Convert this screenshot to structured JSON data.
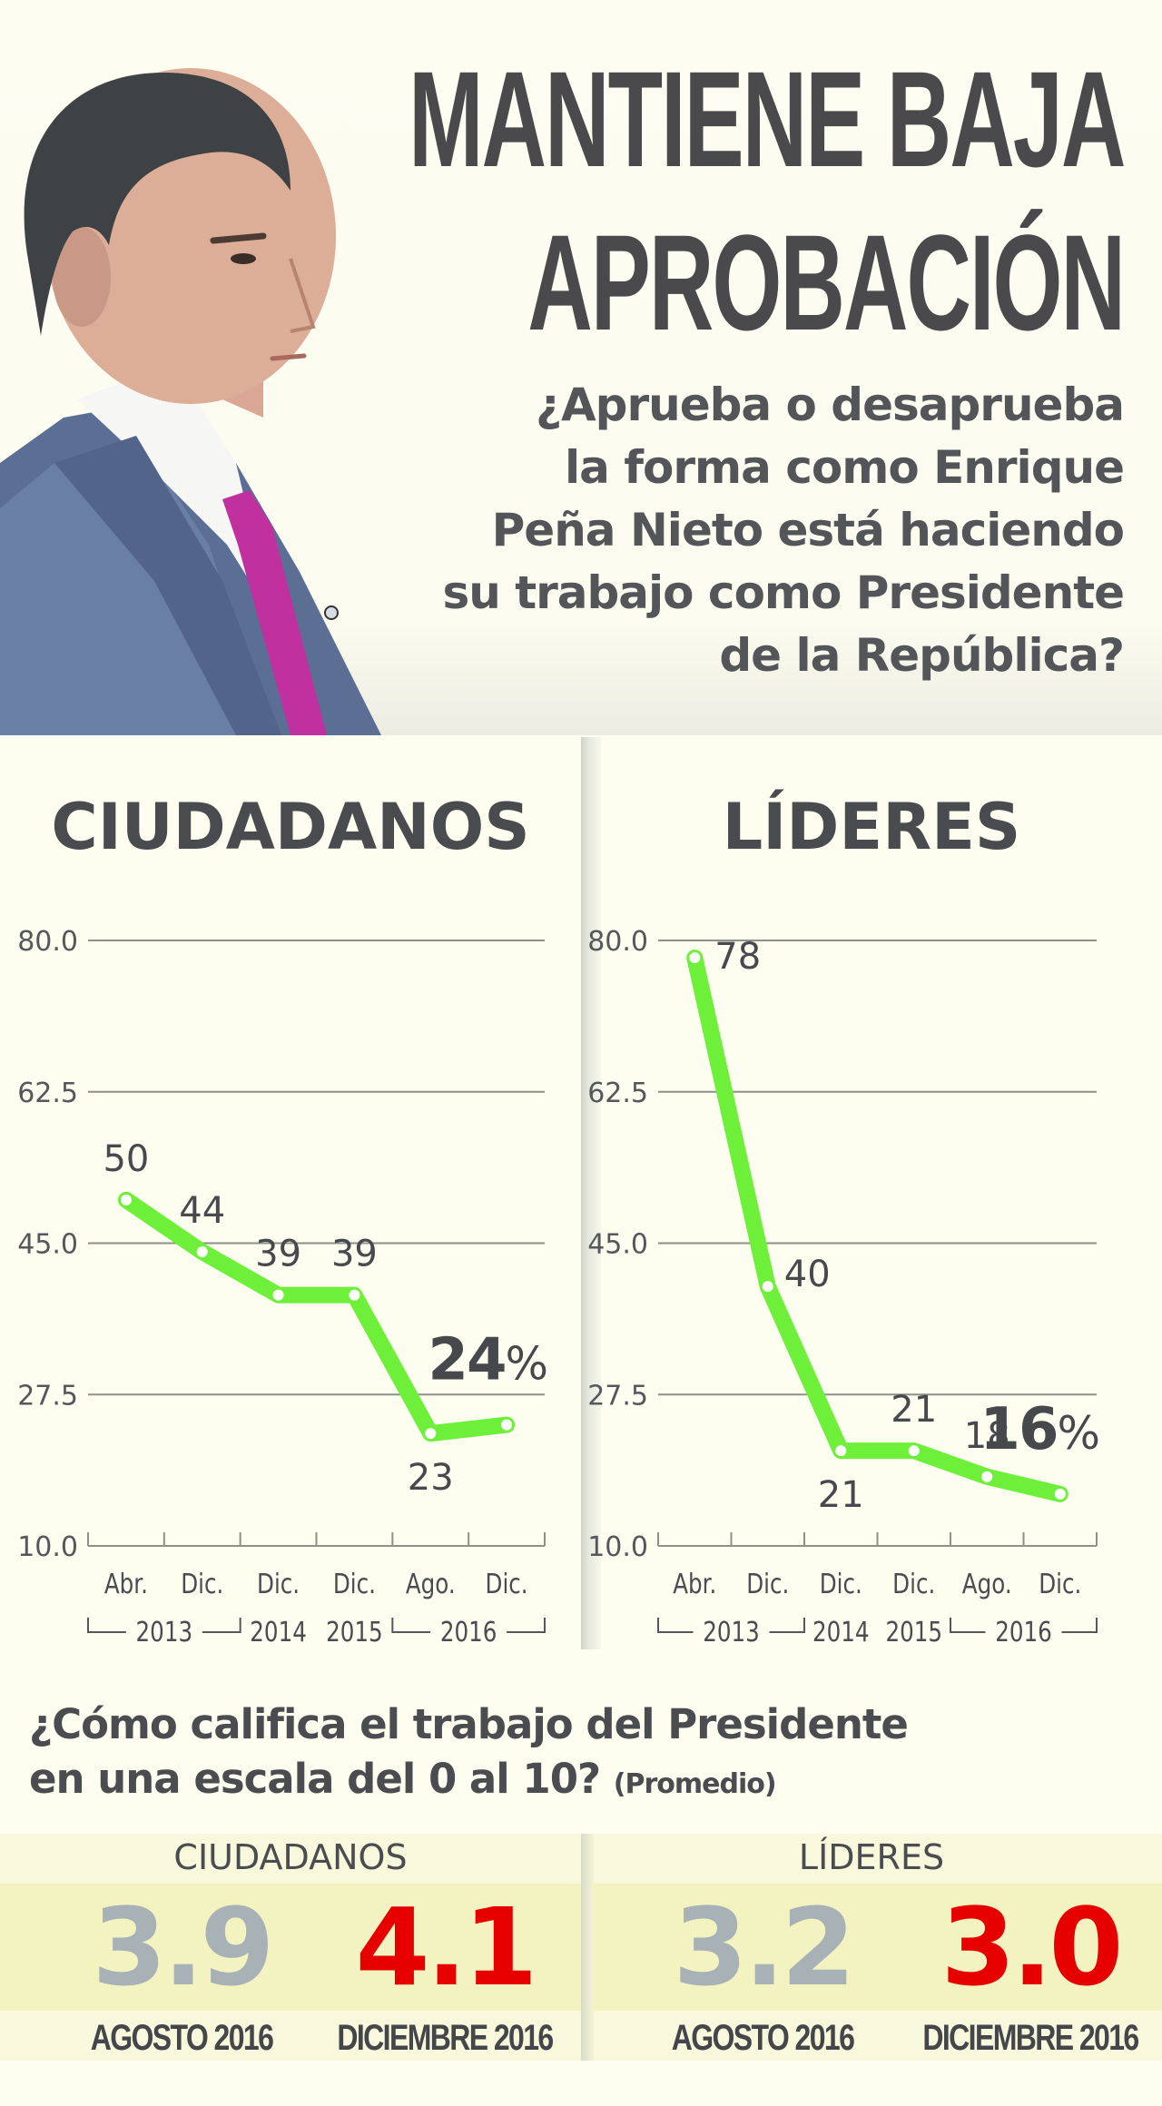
{
  "header": {
    "headline_line1": "MANTIENE BAJA",
    "headline_line2": "APROBACIÓN",
    "question_lines": [
      "¿Aprueba o desaprueba",
      "la forma como Enrique",
      "Peña Nieto está haciendo",
      "su trabajo como Presidente",
      "de la República?"
    ],
    "portrait": "photo of Enrique Peña Nieto in profile, grey suit, magenta tie"
  },
  "colors": {
    "line": "#6ef03a",
    "text_dark": "#4a4b4f",
    "grid": "#8d9187",
    "score_previous": "#a8b1b6",
    "score_current": "#e60000"
  },
  "chart_data": [
    {
      "type": "line",
      "title": "CIUDADANOS",
      "categories": [
        "Abr.",
        "Dic.",
        "Dic.",
        "Dic.",
        "Ago.",
        "Dic."
      ],
      "year_groups": [
        {
          "label": "2013",
          "span": [
            0,
            1
          ]
        },
        {
          "label": "2014",
          "span": [
            2,
            2
          ]
        },
        {
          "label": "2015",
          "span": [
            3,
            3
          ]
        },
        {
          "label": "2016",
          "span": [
            4,
            5
          ]
        }
      ],
      "values": [
        50,
        44,
        39,
        39,
        23,
        24
      ],
      "data_labels": [
        "50",
        "44",
        "39",
        "39",
        "23",
        null
      ],
      "highlight_label": "24%",
      "yticks": [
        "80.0",
        "62.5",
        "45.0",
        "27.5",
        "10.0"
      ],
      "ylim": [
        10,
        80
      ],
      "grid": true,
      "xlabel": "",
      "ylabel": ""
    },
    {
      "type": "line",
      "title": "LÍDERES",
      "categories": [
        "Abr.",
        "Dic.",
        "Dic.",
        "Dic.",
        "Ago.",
        "Dic."
      ],
      "year_groups": [
        {
          "label": "2013",
          "span": [
            0,
            1
          ]
        },
        {
          "label": "2014",
          "span": [
            2,
            2
          ]
        },
        {
          "label": "2015",
          "span": [
            3,
            3
          ]
        },
        {
          "label": "2016",
          "span": [
            4,
            5
          ]
        }
      ],
      "values": [
        78,
        40,
        21,
        21,
        18,
        16
      ],
      "data_labels": [
        "78",
        "40",
        "21",
        "21",
        "18",
        null
      ],
      "highlight_label": "16%",
      "yticks": [
        "80.0",
        "62.5",
        "45.0",
        "27.5",
        "10.0"
      ],
      "ylim": [
        10,
        80
      ],
      "grid": true,
      "xlabel": "",
      "ylabel": ""
    }
  ],
  "rating": {
    "question_main_line1": "¿Cómo califica el trabajo del Presidente",
    "question_main_line2": "en una escala del 0 al 10?",
    "question_note": "(Promedio)",
    "groups": [
      {
        "label": "CIUDADANOS",
        "previous": {
          "value": "3.9",
          "date": "AGOSTO 2016"
        },
        "current": {
          "value": "4.1",
          "date": "DICIEMBRE 2016"
        }
      },
      {
        "label": "LÍDERES",
        "previous": {
          "value": "3.2",
          "date": "AGOSTO 2016"
        },
        "current": {
          "value": "3.0",
          "date": "DICIEMBRE 2016"
        }
      }
    ]
  }
}
